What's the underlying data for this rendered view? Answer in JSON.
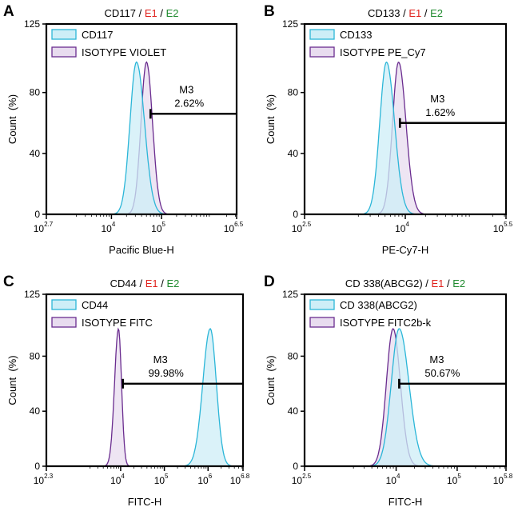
{
  "colors": {
    "sample": "#2bb6d8",
    "sample_fill": "#cdeef7",
    "isotype": "#6a2c8f",
    "isotype_fill": "#e8dcef",
    "e1": "#e0201b",
    "e2": "#1f8a2e"
  },
  "chart_data": [
    {
      "type": "histogram",
      "panel": "A",
      "title": {
        "marker": "CD117",
        "sep1": " / ",
        "e1": "E1",
        "sep2": " / ",
        "e2": "E2"
      },
      "xlabel": "Pacific Blue-H",
      "ylabel": "Count  (%)",
      "x_log_range": [
        2.7,
        6.5
      ],
      "ylim": [
        0,
        125
      ],
      "y_ticks": [
        "0",
        "40",
        "80",
        "125"
      ],
      "x_ticks": [
        {
          "exp": 2.7,
          "base": "10",
          "sup": "2.7"
        },
        {
          "exp": 4,
          "base": "10",
          "sup": "4"
        },
        {
          "exp": 5,
          "base": "10",
          "sup": "5"
        },
        {
          "exp": 6.5,
          "base": "10",
          "sup": "6.5"
        }
      ],
      "series": [
        {
          "name": "CD117",
          "role": "sample",
          "peak_log": 4.5,
          "peak_value": 100,
          "left_width": 0.13,
          "right_width": 0.16
        },
        {
          "name": "ISOTYPE VIOLET",
          "role": "isotype",
          "peak_log": 4.7,
          "peak_value": 100,
          "left_width": 0.11,
          "right_width": 0.12
        }
      ],
      "gate": {
        "name": "M3",
        "value": "2.62%",
        "start_log": 4.78,
        "end_log": 6.5,
        "level": 66
      }
    },
    {
      "type": "histogram",
      "panel": "B",
      "title": {
        "marker": "CD133",
        "sep1": " / ",
        "e1": "E1",
        "sep2": " / ",
        "e2": "E2"
      },
      "xlabel": "PE-Cy7-H",
      "ylabel": "Count  (%)",
      "x_log_range": [
        2.5,
        5.5
      ],
      "ylim": [
        0,
        125
      ],
      "y_ticks": [
        "0",
        "40",
        "80",
        "125"
      ],
      "x_ticks": [
        {
          "exp": 2.5,
          "base": "10",
          "sup": "2.5"
        },
        {
          "exp": 4,
          "base": "10",
          "sup": "4"
        },
        {
          "exp": 5.5,
          "base": "10",
          "sup": "5.5"
        }
      ],
      "series": [
        {
          "name": "CD133",
          "role": "sample",
          "peak_log": 3.72,
          "peak_value": 100,
          "left_width": 0.1,
          "right_width": 0.12
        },
        {
          "name": "ISOTYPE PE_Cy7",
          "role": "isotype",
          "peak_log": 3.9,
          "peak_value": 100,
          "left_width": 0.09,
          "right_width": 0.11
        }
      ],
      "gate": {
        "name": "M3",
        "value": "1.62%",
        "start_log": 3.92,
        "end_log": 5.5,
        "level": 60
      }
    },
    {
      "type": "histogram",
      "panel": "C",
      "title": {
        "marker": "CD44",
        "sep1": " / ",
        "e1": "E1",
        "sep2": " / ",
        "e2": "E2"
      },
      "xlabel": "FITC-H",
      "ylabel": "Count  (%)",
      "x_log_range": [
        2.3,
        6.8
      ],
      "ylim": [
        0,
        125
      ],
      "y_ticks": [
        "0",
        "40",
        "80",
        "125"
      ],
      "x_ticks": [
        {
          "exp": 2.3,
          "base": "10",
          "sup": "2.3"
        },
        {
          "exp": 4,
          "base": "10",
          "sup": "4"
        },
        {
          "exp": 5,
          "base": "10",
          "sup": "5"
        },
        {
          "exp": 6,
          "base": "10",
          "sup": "6"
        },
        {
          "exp": 6.8,
          "base": "10",
          "sup": "6.8"
        }
      ],
      "series": [
        {
          "name": "CD44",
          "role": "sample",
          "peak_log": 6.05,
          "peak_value": 100,
          "left_width": 0.17,
          "right_width": 0.14
        },
        {
          "name": "ISOTYPE FITC",
          "role": "isotype",
          "peak_log": 3.95,
          "peak_value": 100,
          "left_width": 0.09,
          "right_width": 0.07
        }
      ],
      "gate": {
        "name": "M3",
        "value": "99.98%",
        "start_log": 4.05,
        "end_log": 6.8,
        "level": 60
      }
    },
    {
      "type": "histogram",
      "panel": "D",
      "title": {
        "marker": "CD 338(ABCG2)",
        "sep1": " / ",
        "e1": "E1",
        "sep2": " / ",
        "e2": "E2"
      },
      "xlabel": "FITC-H",
      "ylabel": "Count  (%)",
      "x_log_range": [
        2.5,
        5.8
      ],
      "ylim": [
        0,
        125
      ],
      "y_ticks": [
        "0",
        "40",
        "80",
        "125"
      ],
      "x_ticks": [
        {
          "exp": 2.5,
          "base": "10",
          "sup": "2.5"
        },
        {
          "exp": 4,
          "base": "10",
          "sup": "4"
        },
        {
          "exp": 5,
          "base": "10",
          "sup": "5"
        },
        {
          "exp": 5.8,
          "base": "10",
          "sup": "5.8"
        }
      ],
      "series": [
        {
          "name": "CD 338(ABCG2)",
          "role": "sample",
          "peak_log": 4.05,
          "peak_value": 100,
          "left_width": 0.13,
          "right_width": 0.16
        },
        {
          "name": "ISOTYPE FITC2b-k",
          "role": "isotype",
          "peak_log": 3.95,
          "peak_value": 100,
          "left_width": 0.11,
          "right_width": 0.12
        }
      ],
      "gate": {
        "name": "M3",
        "value": "50.67%",
        "start_log": 4.05,
        "end_log": 5.8,
        "level": 60
      }
    }
  ]
}
